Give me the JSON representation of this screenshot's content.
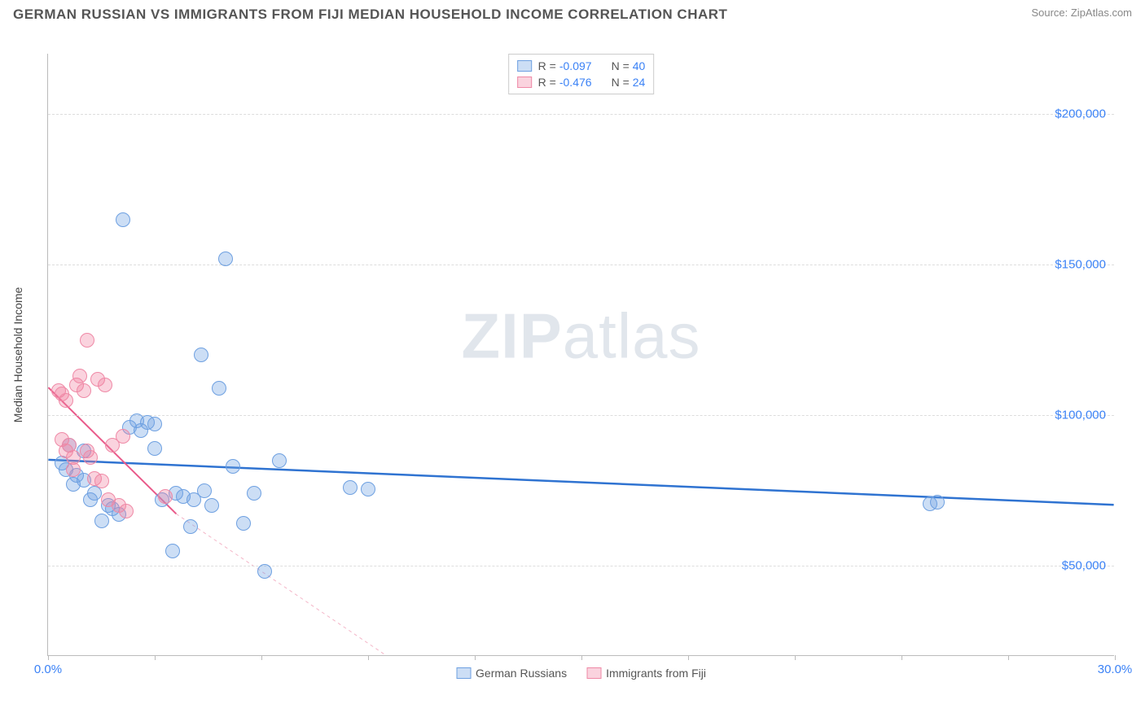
{
  "title": "GERMAN RUSSIAN VS IMMIGRANTS FROM FIJI MEDIAN HOUSEHOLD INCOME CORRELATION CHART",
  "source": "Source: ZipAtlas.com",
  "watermark_bold": "ZIP",
  "watermark_light": "atlas",
  "chart": {
    "type": "scatter",
    "x_axis": {
      "min": 0.0,
      "max": 30.0,
      "label_min": "0.0%",
      "label_max": "30.0%",
      "ticks_at": [
        0,
        3,
        6,
        9,
        12,
        15,
        18,
        21,
        24,
        27,
        30
      ]
    },
    "y_axis": {
      "min": 20000,
      "max": 220000,
      "label": "Median Household Income",
      "gridlines": [
        {
          "value": 50000,
          "label": "$50,000"
        },
        {
          "value": 100000,
          "label": "$100,000"
        },
        {
          "value": 150000,
          "label": "$150,000"
        },
        {
          "value": 200000,
          "label": "$200,000"
        }
      ]
    },
    "background_color": "#ffffff",
    "grid_color": "#dddddd",
    "point_radius": 9,
    "series": [
      {
        "id": "german_russians",
        "label": "German Russians",
        "fill": "rgba(110,160,225,0.35)",
        "stroke": "#6ea0e1",
        "trend": {
          "color": "#2f73d1",
          "width": 2.5,
          "y_at_xmin": 85000,
          "y_at_xmax": 70000,
          "dashed_extension": false
        },
        "R": "-0.097",
        "N": "40",
        "points": [
          [
            0.4,
            84000
          ],
          [
            0.5,
            82000
          ],
          [
            0.6,
            90000
          ],
          [
            0.7,
            77000
          ],
          [
            0.8,
            80000
          ],
          [
            1.0,
            78500
          ],
          [
            1.0,
            88000
          ],
          [
            1.2,
            72000
          ],
          [
            1.3,
            74000
          ],
          [
            1.5,
            65000
          ],
          [
            1.7,
            70000
          ],
          [
            1.8,
            69000
          ],
          [
            2.0,
            67000
          ],
          [
            2.1,
            165000
          ],
          [
            2.3,
            96000
          ],
          [
            2.5,
            98000
          ],
          [
            2.6,
            95000
          ],
          [
            2.8,
            97500
          ],
          [
            3.0,
            89000
          ],
          [
            3.0,
            97000
          ],
          [
            3.2,
            72000
          ],
          [
            3.5,
            55000
          ],
          [
            3.6,
            74000
          ],
          [
            3.8,
            73000
          ],
          [
            4.0,
            63000
          ],
          [
            4.1,
            72000
          ],
          [
            4.3,
            120000
          ],
          [
            4.4,
            75000
          ],
          [
            4.6,
            70000
          ],
          [
            4.8,
            109000
          ],
          [
            5.0,
            152000
          ],
          [
            5.2,
            83000
          ],
          [
            5.5,
            64000
          ],
          [
            5.8,
            74000
          ],
          [
            6.1,
            48000
          ],
          [
            6.5,
            85000
          ],
          [
            8.5,
            76000
          ],
          [
            9.0,
            75500
          ],
          [
            24.8,
            70500
          ],
          [
            25.0,
            71000
          ]
        ]
      },
      {
        "id": "immigrants_fiji",
        "label": "Immigrants from Fiji",
        "fill": "rgba(240,130,160,0.35)",
        "stroke": "#ef89a6",
        "trend": {
          "color": "#e95a8a",
          "width": 2,
          "y_at_xmin": 109000,
          "y_at_xmax_visible_x": 3.6,
          "y_at_xmax_visible_y": 67000,
          "dashed_extension": true,
          "dash_color": "#f4b6c8",
          "dash_end_x": 9.5,
          "dash_end_y": 0
        },
        "R": "-0.476",
        "N": "24",
        "points": [
          [
            0.3,
            108000
          ],
          [
            0.4,
            107000
          ],
          [
            0.4,
            92000
          ],
          [
            0.5,
            105000
          ],
          [
            0.5,
            88000
          ],
          [
            0.6,
            90000
          ],
          [
            0.7,
            86000
          ],
          [
            0.7,
            82000
          ],
          [
            0.8,
            110000
          ],
          [
            0.9,
            113000
          ],
          [
            1.0,
            108000
          ],
          [
            1.1,
            125000
          ],
          [
            1.1,
            88000
          ],
          [
            1.2,
            86000
          ],
          [
            1.3,
            79000
          ],
          [
            1.4,
            112000
          ],
          [
            1.5,
            78000
          ],
          [
            1.6,
            110000
          ],
          [
            1.7,
            72000
          ],
          [
            1.8,
            90000
          ],
          [
            2.0,
            70000
          ],
          [
            2.1,
            93000
          ],
          [
            2.2,
            68000
          ],
          [
            3.3,
            73000
          ]
        ]
      }
    ],
    "legend_top": [
      {
        "swatch_fill": "rgba(110,160,225,0.35)",
        "swatch_stroke": "#6ea0e1",
        "R_label": "R =",
        "R": "-0.097",
        "N_label": "N =",
        "N": "40"
      },
      {
        "swatch_fill": "rgba(240,130,160,0.35)",
        "swatch_stroke": "#ef89a6",
        "R_label": "R =",
        "R": "-0.476",
        "N_label": "N =",
        "N": "24"
      }
    ]
  }
}
